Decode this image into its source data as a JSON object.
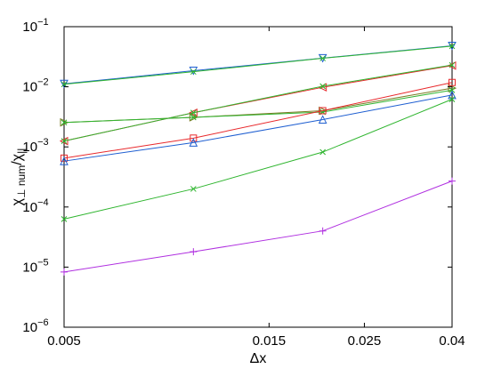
{
  "chart_data": {
    "type": "line",
    "xlabel": "Δx",
    "ylabel_main": "χ",
    "ylabel_sub1": "⊥ num",
    "ylabel_slash": "/χ",
    "ylabel_sub2": "||",
    "x_scale": "log",
    "y_scale": "log",
    "xlim": [
      0.005,
      0.04
    ],
    "ylim": [
      1e-06,
      0.1
    ],
    "x_ticks": [
      {
        "value": 0.005,
        "label": "0.005"
      },
      {
        "value": 0.015,
        "label": "0.015"
      },
      {
        "value": 0.025,
        "label": "0.025"
      },
      {
        "value": 0.04,
        "label": "0.04"
      }
    ],
    "y_ticks": [
      {
        "value": 1e-06,
        "base": "10",
        "exp": "−6"
      },
      {
        "value": 1e-05,
        "base": "10",
        "exp": "−5"
      },
      {
        "value": 0.0001,
        "base": "10",
        "exp": "−4"
      },
      {
        "value": 0.001,
        "base": "10",
        "exp": "−3"
      },
      {
        "value": 0.01,
        "base": "10",
        "exp": "−2"
      },
      {
        "value": 0.1,
        "base": "10",
        "exp": "−1"
      }
    ],
    "grid": false,
    "legend": "none",
    "x": [
      0.005,
      0.01,
      0.02,
      0.04
    ],
    "series": [
      {
        "color": "#1f5fd1",
        "marker": "triangle-down",
        "values": [
          0.0112,
          0.0185,
          0.03,
          0.048
        ]
      },
      {
        "color": "#2fb52f",
        "marker": "x",
        "values": [
          0.011,
          0.0178,
          0.0298,
          0.0475
        ]
      },
      {
        "color": "#e8292c",
        "marker": "triangle-left",
        "values": [
          0.00125,
          0.0037,
          0.0098,
          0.0225
        ]
      },
      {
        "color": "#2fb52f",
        "marker": "x",
        "values": [
          0.00125,
          0.0037,
          0.0102,
          0.023
        ]
      },
      {
        "color": "#7a7a22",
        "marker": "triangle-right",
        "values": [
          0.00255,
          0.0031,
          0.004,
          0.0095
        ]
      },
      {
        "color": "#2fb52f",
        "marker": "x",
        "values": [
          0.00255,
          0.0031,
          0.0038,
          0.0088
        ]
      },
      {
        "color": "#e8292c",
        "marker": "square",
        "values": [
          0.00065,
          0.0014,
          0.004,
          0.0118
        ]
      },
      {
        "color": "#1f5fd1",
        "marker": "triangle-up",
        "values": [
          0.00058,
          0.00118,
          0.00285,
          0.0073
        ]
      },
      {
        "color": "#2fb52f",
        "marker": "x",
        "values": [
          6.3e-05,
          0.0002,
          0.00082,
          0.0062
        ]
      },
      {
        "color": "#b030e0",
        "marker": "plus",
        "values": [
          8.3e-06,
          1.8e-05,
          4e-05,
          0.00027
        ]
      }
    ]
  }
}
